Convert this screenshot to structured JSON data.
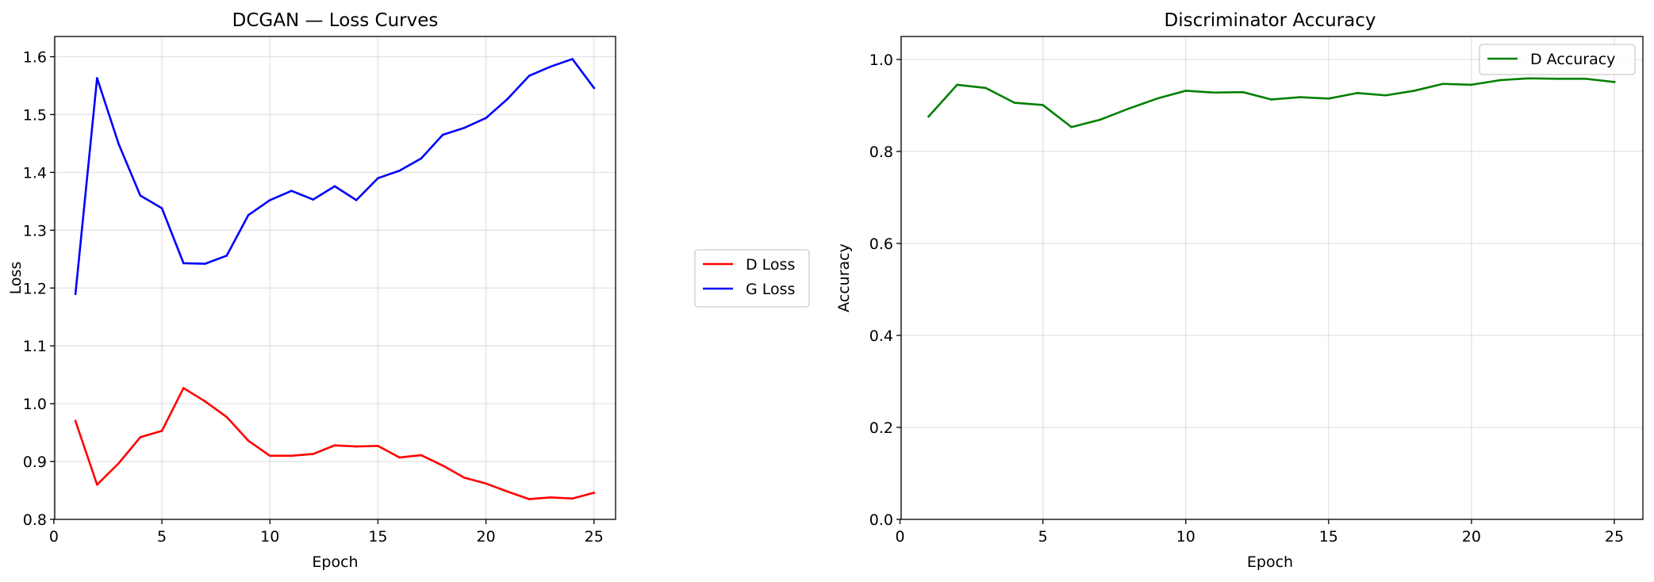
{
  "chart_data": [
    {
      "type": "line",
      "title": "DCGAN — Loss Curves",
      "xlabel": "Epoch",
      "ylabel": "Loss",
      "xlim": [
        0.04,
        26.0
      ],
      "ylim": [
        0.8,
        1.635
      ],
      "xticks": [
        0,
        5,
        10,
        15,
        20,
        25
      ],
      "yticks": [
        0.8,
        0.9,
        1.0,
        1.1,
        1.2,
        1.3,
        1.4,
        1.5,
        1.6
      ],
      "ytick_labels": [
        "0.8",
        "0.9",
        "1.0",
        "1.1",
        "1.2",
        "1.3",
        "1.4",
        "1.5",
        "1.6"
      ],
      "grid": true,
      "legend_position": "center-right",
      "x": [
        1,
        2,
        3,
        4,
        5,
        6,
        7,
        8,
        9,
        10,
        11,
        12,
        13,
        14,
        15,
        16,
        17,
        18,
        19,
        20,
        21,
        22,
        23,
        24,
        25
      ],
      "series": [
        {
          "name": "D Loss",
          "color": "#ff0000",
          "values": [
            0.97,
            0.86,
            0.897,
            0.942,
            0.953,
            1.027,
            1.004,
            0.977,
            0.936,
            0.91,
            0.91,
            0.913,
            0.928,
            0.926,
            0.927,
            0.907,
            0.911,
            0.893,
            0.872,
            0.862,
            0.848,
            0.835,
            0.838,
            0.836,
            0.846
          ]
        },
        {
          "name": "G Loss",
          "color": "#0000ff",
          "values": [
            1.19,
            1.563,
            1.449,
            1.36,
            1.338,
            1.243,
            1.242,
            1.256,
            1.326,
            1.352,
            1.368,
            1.353,
            1.376,
            1.352,
            1.39,
            1.403,
            1.424,
            1.465,
            1.477,
            1.494,
            1.527,
            1.567,
            1.583,
            1.596,
            1.546
          ]
        }
      ]
    },
    {
      "type": "line",
      "title": "Discriminator Accuracy",
      "xlabel": "Epoch",
      "ylabel": "Accuracy",
      "xlim": [
        0.04,
        26.0
      ],
      "ylim": [
        0.0,
        1.05
      ],
      "xticks": [
        0,
        5,
        10,
        15,
        20,
        25
      ],
      "yticks": [
        0.0,
        0.2,
        0.4,
        0.6,
        0.8,
        1.0
      ],
      "ytick_labels": [
        "0.0",
        "0.2",
        "0.4",
        "0.6",
        "0.8",
        "1.0"
      ],
      "grid": true,
      "legend_position": "top-right",
      "x": [
        1,
        2,
        3,
        4,
        5,
        6,
        7,
        8,
        9,
        10,
        11,
        12,
        13,
        14,
        15,
        16,
        17,
        18,
        19,
        20,
        21,
        22,
        23,
        24,
        25
      ],
      "series": [
        {
          "name": "D Accuracy",
          "color": "#008000",
          "values": [
            0.876,
            0.945,
            0.938,
            0.906,
            0.901,
            0.853,
            0.869,
            0.893,
            0.915,
            0.932,
            0.928,
            0.929,
            0.913,
            0.918,
            0.915,
            0.927,
            0.922,
            0.932,
            0.947,
            0.945,
            0.955,
            0.959,
            0.958,
            0.958,
            0.951
          ]
        }
      ]
    }
  ]
}
